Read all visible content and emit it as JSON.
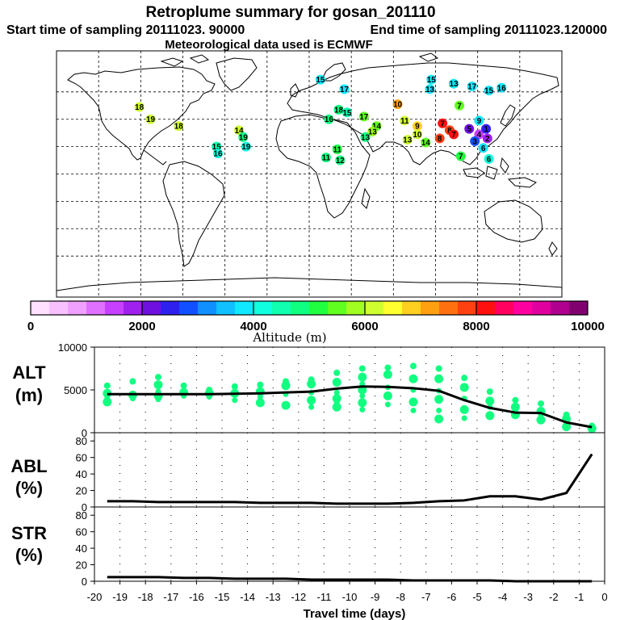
{
  "header": {
    "title": "Retroplume summary for gosan_201110",
    "start_time": "Start time of sampling 20111023. 90000",
    "end_time": "End time of sampling 20111023.120000",
    "met_data": "Meteorological data used is ECMWF"
  },
  "colorbar": {
    "label": "Altitude (m)",
    "ticks": [
      "0",
      "2000",
      "4000",
      "6000",
      "8000",
      "10000"
    ],
    "colors": [
      "#ffe0ff",
      "#f8c0ff",
      "#f0a0ff",
      "#e070ff",
      "#c840ff",
      "#a020f0",
      "#7010e0",
      "#3020f0",
      "#1050ff",
      "#1090ff",
      "#10c0ff",
      "#10e8ff",
      "#10ffe0",
      "#10ffb0",
      "#10ff80",
      "#20ff40",
      "#60ff20",
      "#a0ff20",
      "#d0ff30",
      "#ffff30",
      "#ffd020",
      "#ffa010",
      "#ff7010",
      "#ff4010",
      "#ff1010",
      "#ff0060",
      "#ff00a0",
      "#e000a0",
      "#b00090",
      "#800070"
    ]
  },
  "map_markers": [
    {
      "lon": -121,
      "lat": 49,
      "num": "18",
      "color": "#d0ff30"
    },
    {
      "lon": -113,
      "lat": 40,
      "num": "19",
      "color": "#d0ff30"
    },
    {
      "lon": -93,
      "lat": 35,
      "num": "18",
      "color": "#d0ff30"
    },
    {
      "lon": -50,
      "lat": 32,
      "num": "14",
      "color": "#d0ff30"
    },
    {
      "lon": -47,
      "lat": 27,
      "num": "19",
      "color": "#10ff80"
    },
    {
      "lon": -66,
      "lat": 20,
      "num": "15",
      "color": "#10ffb0"
    },
    {
      "lon": -65,
      "lat": 15,
      "num": "16",
      "color": "#10ffe0"
    },
    {
      "lon": -45,
      "lat": 20,
      "num": "19",
      "color": "#10ffe0"
    },
    {
      "lon": 8,
      "lat": 69,
      "num": "15",
      "color": "#10e8ff"
    },
    {
      "lon": 25,
      "lat": 62,
      "num": "17",
      "color": "#10e8ff"
    },
    {
      "lon": 14,
      "lat": 40,
      "num": "16",
      "color": "#10ff80"
    },
    {
      "lon": 21,
      "lat": 47,
      "num": "18",
      "color": "#10ff80"
    },
    {
      "lon": 27,
      "lat": 45,
      "num": "15",
      "color": "#10ffb0"
    },
    {
      "lon": 39,
      "lat": 42,
      "num": "17",
      "color": "#60ff20"
    },
    {
      "lon": 48,
      "lat": 35,
      "num": "14",
      "color": "#60ff20"
    },
    {
      "lon": 45,
      "lat": 31,
      "num": "13",
      "color": "#a0ff20"
    },
    {
      "lon": 40,
      "lat": 27,
      "num": "13",
      "color": "#10ff80"
    },
    {
      "lon": 20,
      "lat": 18,
      "num": "11",
      "color": "#20ff40"
    },
    {
      "lon": 22,
      "lat": 10,
      "num": "12",
      "color": "#10ff80"
    },
    {
      "lon": 12,
      "lat": 12,
      "num": "11",
      "color": "#10ff80"
    },
    {
      "lon": 63,
      "lat": 51,
      "num": "10",
      "color": "#ffa010"
    },
    {
      "lon": 68,
      "lat": 39,
      "num": "11",
      "color": "#d0ff30"
    },
    {
      "lon": 77,
      "lat": 35,
      "num": "9",
      "color": "#ffd020"
    },
    {
      "lon": 70,
      "lat": 25,
      "num": "13",
      "color": "#d0ff30"
    },
    {
      "lon": 77,
      "lat": 29,
      "num": "10",
      "color": "#d0ff30"
    },
    {
      "lon": 83,
      "lat": 23,
      "num": "14",
      "color": "#60ff20"
    },
    {
      "lon": 95,
      "lat": 37,
      "num": "7",
      "color": "#ff1010"
    },
    {
      "lon": 100,
      "lat": 32,
      "num": "8",
      "color": "#ff4010"
    },
    {
      "lon": 93,
      "lat": 26,
      "num": "8",
      "color": "#ff4010"
    },
    {
      "lon": 103,
      "lat": 29,
      "num": "7",
      "color": "#ff1010"
    },
    {
      "lon": 107,
      "lat": 50,
      "num": "7",
      "color": "#60ff20"
    },
    {
      "lon": 121,
      "lat": 39,
      "num": "9",
      "color": "#10e8ff"
    },
    {
      "lon": 114,
      "lat": 33,
      "num": "5",
      "color": "#7010e0"
    },
    {
      "lon": 121,
      "lat": 29,
      "num": "4",
      "color": "#c840ff"
    },
    {
      "lon": 118,
      "lat": 24,
      "num": "3",
      "color": "#1050ff"
    },
    {
      "lon": 127,
      "lat": 26,
      "num": "2",
      "color": "#a020f0"
    },
    {
      "lon": 124,
      "lat": 19,
      "num": "6",
      "color": "#10e8ff"
    },
    {
      "lon": 108,
      "lat": 13,
      "num": "7",
      "color": "#20ff40"
    },
    {
      "lon": 128,
      "lat": 11,
      "num": "6",
      "color": "#10ffe0"
    },
    {
      "lon": 126,
      "lat": 33,
      "num": "1",
      "color": "#3020f0"
    },
    {
      "lon": 86,
      "lat": 62,
      "num": "13",
      "color": "#10e8ff"
    },
    {
      "lon": 87,
      "lat": 69,
      "num": "15",
      "color": "#10e8ff"
    },
    {
      "lon": 103,
      "lat": 66,
      "num": "13",
      "color": "#10e8ff"
    },
    {
      "lon": 116,
      "lat": 64,
      "num": "17",
      "color": "#10e8ff"
    },
    {
      "lon": 128,
      "lat": 61,
      "num": "15",
      "color": "#10e8ff"
    },
    {
      "lon": 137,
      "lat": 63,
      "num": "16",
      "color": "#10e8ff"
    }
  ],
  "chart_data": [
    {
      "type": "line",
      "panel": "ALT",
      "ylabel": "ALT\n(m)",
      "ylabel_lines": [
        "ALT",
        "(m)"
      ],
      "ylim": [
        0,
        10000
      ],
      "yticks": [
        "0",
        "5000",
        "10000"
      ],
      "x": [
        -19.5,
        -18.5,
        -17.5,
        -16.5,
        -15.5,
        -14.5,
        -13.5,
        -12.5,
        -11.5,
        -10.5,
        -9.5,
        -8.5,
        -7.5,
        -6.5,
        -5.5,
        -4.5,
        -3.5,
        -2.5,
        -1.5,
        -0.5
      ],
      "series": [
        {
          "name": "median altitude",
          "values": [
            4500,
            4500,
            4500,
            4500,
            4500,
            4550,
            4600,
            4700,
            4800,
            5150,
            5400,
            5350,
            5200,
            4900,
            3800,
            2900,
            2350,
            2300,
            1200,
            650
          ]
        }
      ],
      "scatter": [
        {
          "x": -19.5,
          "ys": [
            5500,
            4600,
            4000,
            3600
          ]
        },
        {
          "x": -18.5,
          "ys": [
            6000,
            4400,
            4000
          ]
        },
        {
          "x": -17.5,
          "ys": [
            6500,
            5600,
            4800,
            4300,
            3900
          ]
        },
        {
          "x": -16.5,
          "ys": [
            5500,
            4700,
            4300
          ]
        },
        {
          "x": -15.5,
          "ys": [
            5000,
            4600,
            4200
          ]
        },
        {
          "x": -14.5,
          "ys": [
            5400,
            4600,
            3800
          ]
        },
        {
          "x": -13.5,
          "ys": [
            5600,
            4800,
            4200,
            3500
          ]
        },
        {
          "x": -12.5,
          "ys": [
            6000,
            5500,
            4500,
            3200
          ]
        },
        {
          "x": -11.5,
          "ys": [
            6200,
            5700,
            4700,
            3800,
            3000
          ]
        },
        {
          "x": -10.5,
          "ys": [
            7000,
            5900,
            4700,
            4000,
            3500,
            3000
          ]
        },
        {
          "x": -9.5,
          "ys": [
            7500,
            6500,
            5700,
            5000,
            4300,
            3500,
            2700
          ]
        },
        {
          "x": -8.5,
          "ys": [
            7600,
            6800,
            5300,
            4300,
            3300
          ]
        },
        {
          "x": -7.5,
          "ys": [
            7800,
            6300,
            5000,
            3600,
            2600
          ]
        },
        {
          "x": -6.5,
          "ys": [
            7500,
            6300,
            4900,
            3900,
            2600,
            1600
          ]
        },
        {
          "x": -5.5,
          "ys": [
            6400,
            5300,
            4000,
            2700,
            1700
          ]
        },
        {
          "x": -4.5,
          "ys": [
            4800,
            3700,
            3000,
            2000
          ]
        },
        {
          "x": -3.5,
          "ys": [
            3800,
            3000,
            2500,
            2100
          ]
        },
        {
          "x": -2.5,
          "ys": [
            3400,
            2500,
            2100,
            1500,
            1300
          ]
        },
        {
          "x": -1.5,
          "ys": [
            2100,
            1600,
            1100,
            700
          ]
        },
        {
          "x": -0.5,
          "ys": [
            800,
            500
          ]
        }
      ]
    },
    {
      "type": "line",
      "panel": "ABL",
      "ylabel": "ABL\n(%)",
      "ylabel_lines": [
        "ABL",
        "(%)"
      ],
      "ylim": [
        0,
        90
      ],
      "yticks": [
        "0",
        "20",
        "40",
        "60",
        "80"
      ],
      "x": [
        -19.5,
        -18.5,
        -17.5,
        -16.5,
        -15.5,
        -14.5,
        -13.5,
        -12.5,
        -11.5,
        -10.5,
        -9.5,
        -8.5,
        -7.5,
        -6.5,
        -5.5,
        -4.5,
        -3.5,
        -2.5,
        -1.5,
        -0.5
      ],
      "series": [
        {
          "name": "fraction in boundary layer",
          "values": [
            7,
            7,
            6,
            6,
            6,
            6,
            5,
            5,
            5,
            4,
            4,
            4,
            5,
            7,
            8,
            13,
            13,
            9,
            17,
            64
          ]
        }
      ]
    },
    {
      "type": "line",
      "panel": "STR",
      "ylabel": "STR\n(%)",
      "ylabel_lines": [
        "STR",
        "(%)"
      ],
      "ylim": [
        0,
        90
      ],
      "yticks": [
        "0",
        "20",
        "40",
        "60",
        "80"
      ],
      "xlabel": "Travel time (days)",
      "xticks": [
        "-20",
        "-19",
        "-18",
        "-17",
        "-16",
        "-15",
        "-14",
        "-13",
        "-12",
        "-11",
        "-10",
        "-9",
        "-8",
        "-7",
        "-6",
        "-5",
        "-4",
        "-3",
        "-2",
        "-1",
        "0"
      ],
      "x": [
        -19.5,
        -18.5,
        -17.5,
        -16.5,
        -15.5,
        -14.5,
        -13.5,
        -12.5,
        -11.5,
        -10.5,
        -9.5,
        -8.5,
        -7.5,
        -6.5,
        -5.5,
        -4.5,
        -3.5,
        -2.5,
        -1.5,
        -0.5
      ],
      "series": [
        {
          "name": "fraction in stratosphere",
          "values": [
            5,
            5,
            5,
            4,
            4,
            3,
            3,
            3,
            2,
            2,
            2,
            2,
            1,
            1,
            1,
            1,
            0,
            0,
            0,
            0
          ]
        }
      ]
    }
  ]
}
